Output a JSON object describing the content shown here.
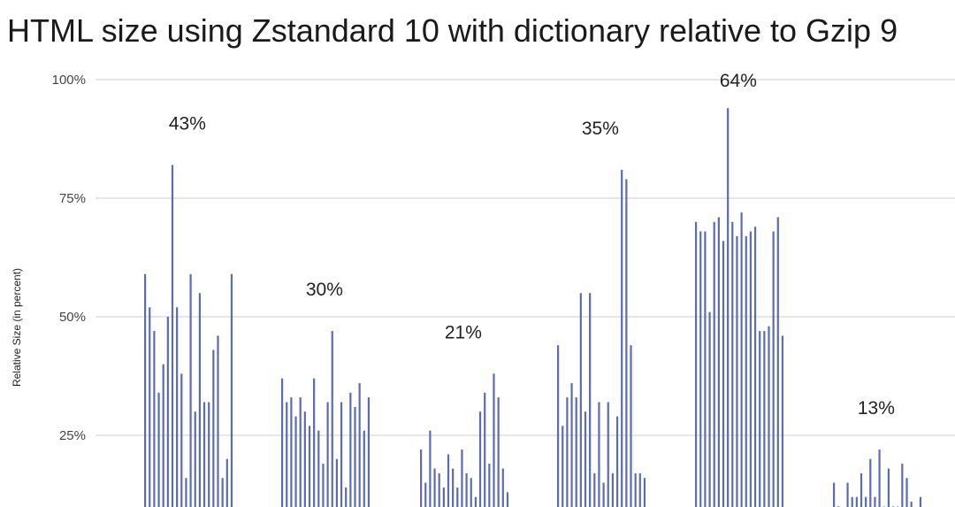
{
  "chart_data": {
    "type": "bar",
    "title": "HTML size using Zstandard 10 with dictionary relative to Gzip 9",
    "ylabel": "Relative Size (in percent)",
    "xlabel": "",
    "ylim": [
      0,
      100
    ],
    "yticks": [
      "25%",
      "50%",
      "75%",
      "100%"
    ],
    "ytick_values": [
      25,
      50,
      75,
      100
    ],
    "grid": true,
    "bar_color": "#5b6bb4",
    "grid_color": "#cccccc",
    "groups": [
      {
        "label": "43%",
        "values": [
          59,
          52,
          47,
          34,
          40,
          50,
          82,
          52,
          38,
          16,
          59,
          30,
          55,
          32,
          32,
          43,
          46,
          16,
          20,
          59
        ]
      },
      {
        "label": "30%",
        "values": [
          37,
          32,
          33,
          29,
          33,
          30,
          27,
          37,
          26,
          19,
          32,
          47,
          20,
          32,
          14,
          34,
          31,
          36,
          26,
          33
        ]
      },
      {
        "label": "21%",
        "values": [
          22,
          15,
          26,
          18,
          17,
          14,
          21,
          18,
          14,
          22,
          17,
          16,
          12,
          30,
          34,
          19,
          38,
          33,
          18,
          13
        ]
      },
      {
        "label": "35%",
        "values": [
          44,
          27,
          33,
          36,
          33,
          55,
          30,
          55,
          17,
          32,
          15,
          32,
          17,
          29,
          81,
          79,
          44,
          17,
          17,
          16
        ]
      },
      {
        "label": "64%",
        "values": [
          70,
          68,
          68,
          51,
          70,
          71,
          66,
          94,
          70,
          67,
          72,
          67,
          68,
          69,
          47,
          47,
          48,
          68,
          71,
          46
        ]
      },
      {
        "label": "13%",
        "values": [
          15,
          10,
          8,
          15,
          12,
          12,
          17,
          12,
          20,
          12,
          22,
          10,
          18,
          10,
          10,
          19,
          16,
          11,
          8,
          12
        ]
      }
    ]
  }
}
